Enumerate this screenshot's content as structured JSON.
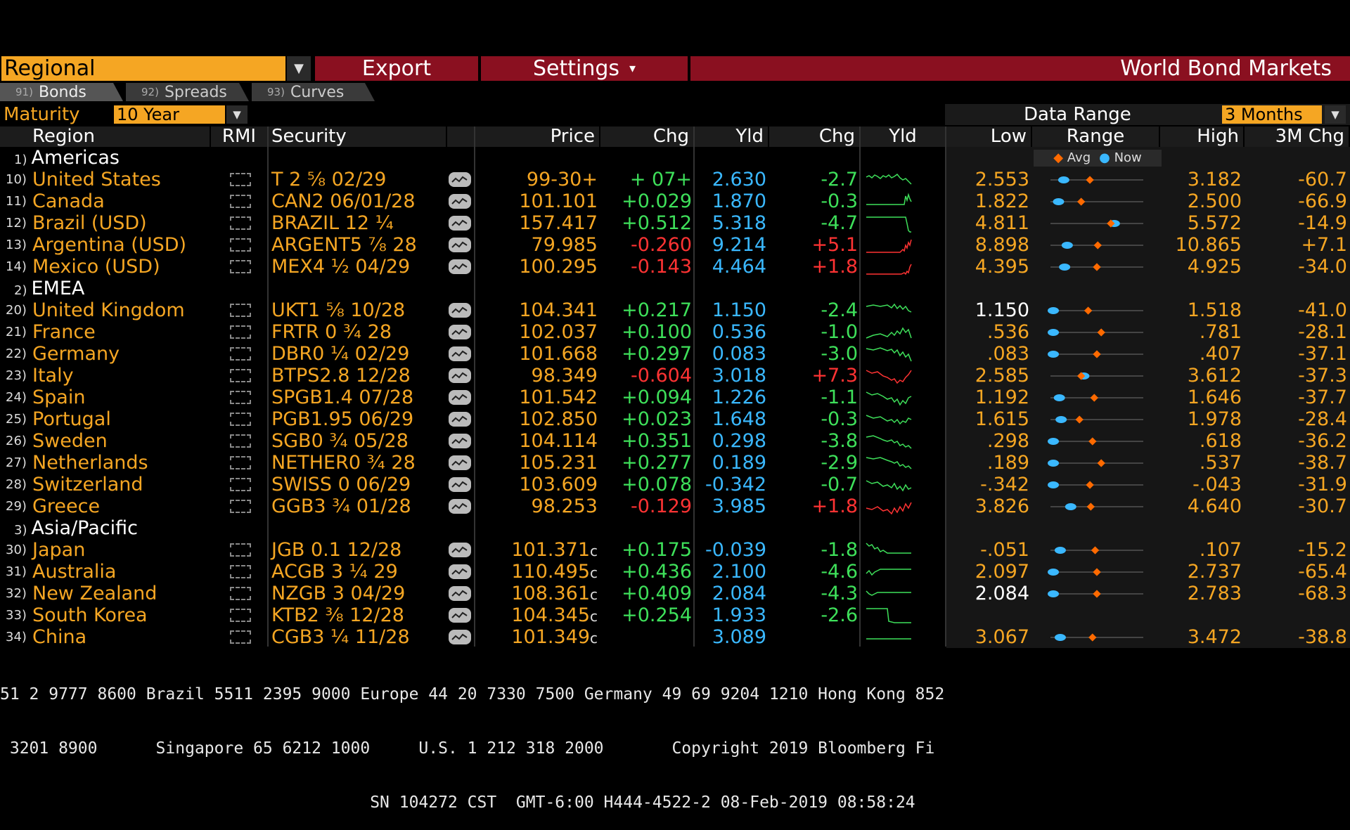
{
  "topbar": {
    "regional": "Regional",
    "export": "Export",
    "settings": "Settings",
    "settings_caret": "▾",
    "title": "World Bond Markets"
  },
  "tabs": [
    {
      "num": "91)",
      "label": "Bonds"
    },
    {
      "num": "92)",
      "label": "Spreads"
    },
    {
      "num": "93)",
      "label": "Curves"
    }
  ],
  "maturity": {
    "label": "Maturity",
    "value": "10 Year"
  },
  "data_range": {
    "label": "Data Range",
    "value": "3 Months"
  },
  "columns": {
    "region": "Region",
    "rmi": "RMI",
    "security": "Security",
    "price": "Price",
    "chg": "Chg",
    "yld": "Yld",
    "ychg": "Chg",
    "yld_chart": "Yld",
    "low": "Low",
    "range": "Range",
    "high": "High",
    "chg3m": "3M Chg"
  },
  "legend": {
    "avg": "Avg",
    "now": "Now",
    "avg_color": "#ff6a00",
    "now_color": "#3ab8ff"
  },
  "groups": [
    {
      "num": "1)",
      "name": "Americas",
      "rows": [
        {
          "num": "10)",
          "region": "United States",
          "security": "T 2 ⅝ 02/29",
          "price": "99-30+",
          "chg": "+ 07+",
          "yld": "2.630",
          "ychg": "-2.7",
          "low": "2.553",
          "high": "3.182",
          "chg3m": "-60.7",
          "avg": 0.42,
          "now": 0.12,
          "price_up": true,
          "yld_up": false,
          "spark": "0,8 4,6 8,9 12,5 16,7 20,10 24,6 28,8 32,5 36,9 40,7 44,4 48,9 52,12 56,10 60,14 64,18"
        },
        {
          "num": "11)",
          "region": "Canada",
          "security": "CAN2 06/01/28",
          "price": "101.101",
          "chg": "+0.029",
          "yld": "1.870",
          "ychg": "-0.3",
          "low": "1.822",
          "high": "2.500",
          "chg3m": "-66.9",
          "avg": 0.32,
          "now": 0.06,
          "price_up": true,
          "yld_up": false,
          "spark": "0,16 20,16 40,16 54,16 56,4 58,10 60,2 62,8 64,12"
        },
        {
          "num": "12)",
          "region": "Brazil (USD)",
          "security": "BRAZIL 12 ¼",
          "price": "157.417",
          "chg": "+0.512",
          "yld": "5.318",
          "ychg": "-4.7",
          "low": "4.811",
          "high": "5.572",
          "chg3m": "-14.9",
          "avg": 0.66,
          "now": 0.7,
          "price_up": true,
          "yld_up": false,
          "spark": "0,3 20,3 40,3 56,3 58,12 60,22 62,24 64,24"
        },
        {
          "num": "13)",
          "region": "Argentina (USD)",
          "security": "ARGENT5 ⅞ 28",
          "price": "79.985",
          "chg": "-0.260",
          "yld": "9.214",
          "ychg": "+5.1",
          "low": "8.898",
          "high": "10.865",
          "chg3m": "+7.1",
          "avg": 0.51,
          "now": 0.16,
          "price_up": false,
          "yld_up": true,
          "spark": "0,22 20,22 40,22 48,22 52,18 54,20 56,12 58,16 60,8 62,12 64,4"
        },
        {
          "num": "14)",
          "region": "Mexico (USD)",
          "security": "MEX4 ½ 04/29",
          "price": "100.295",
          "chg": "-0.143",
          "yld": "4.464",
          "ychg": "+1.8",
          "low": "4.395",
          "high": "4.925",
          "chg3m": "-34.0",
          "avg": 0.5,
          "now": 0.13,
          "price_up": false,
          "yld_up": true,
          "spark": "0,22 20,22 40,22 50,22 54,20 56,22 58,18 60,20 62,12 64,8"
        }
      ]
    },
    {
      "num": "2)",
      "name": "EMEA",
      "rows": [
        {
          "num": "20)",
          "region": "United Kingdom",
          "security": "UKT1 ⅝ 10/28",
          "price": "104.341",
          "chg": "+0.217",
          "yld": "1.150",
          "ychg": "-2.4",
          "low": "1.150",
          "high": "1.518",
          "chg3m": "-41.0",
          "avg": 0.4,
          "now": 0.0,
          "price_up": true,
          "yld_up": false,
          "spark": "0,6 10,4 20,6 30,4 36,8 40,3 44,9 48,5 52,10 56,6 60,12 64,14"
        },
        {
          "num": "21)",
          "region": "France",
          "security": "FRTR 0 ¾ 28",
          "price": "102.037",
          "chg": "+0.100",
          "yld": "0.536",
          "ychg": "-1.0",
          "low": ".536",
          "high": ".781",
          "chg3m": "-28.1",
          "avg": 0.55,
          "now": 0.0,
          "price_up": true,
          "yld_up": false,
          "spark": "0,20 10,16 20,14 30,18 36,12 40,16 44,10 48,14 52,6 56,12 60,8 64,20"
        },
        {
          "num": "22)",
          "region": "Germany",
          "security": "DBR0 ¼ 02/29",
          "price": "101.668",
          "chg": "+0.297",
          "yld": "0.083",
          "ychg": "-3.0",
          "low": ".083",
          "high": ".407",
          "chg3m": "-37.1",
          "avg": 0.5,
          "now": 0.0,
          "price_up": true,
          "yld_up": false,
          "spark": "0,4 10,6 20,3 30,7 36,5 40,10 44,6 48,14 52,9 56,16 60,12 64,22"
        },
        {
          "num": "23)",
          "region": "Italy",
          "security": "BTPS2.8 12/28",
          "price": "98.349",
          "chg": "-0.604",
          "yld": "3.018",
          "ychg": "+7.3",
          "low": "2.585",
          "high": "3.612",
          "chg3m": "-37.3",
          "avg": 0.32,
          "now": 0.35,
          "price_up": false,
          "yld_up": true,
          "spark": "0,4 8,8 16,6 24,12 30,14 36,18 40,16 44,22 48,18 52,20 56,14 60,10 64,4"
        },
        {
          "num": "24)",
          "region": "Spain",
          "security": "SPGB1.4 07/28",
          "price": "101.542",
          "chg": "+0.094",
          "yld": "1.226",
          "ychg": "-1.1",
          "low": "1.192",
          "high": "1.646",
          "chg3m": "-37.7",
          "avg": 0.47,
          "now": 0.07,
          "price_up": true,
          "yld_up": false,
          "spark": "0,4 8,8 16,6 24,10 30,14 36,12 40,18 44,14 48,22 52,16 56,20 60,12 64,10"
        },
        {
          "num": "25)",
          "region": "Portugal",
          "security": "PGB1.95 06/29",
          "price": "102.850",
          "chg": "+0.023",
          "yld": "1.648",
          "ychg": "-0.3",
          "low": "1.615",
          "high": "1.978",
          "chg3m": "-28.4",
          "avg": 0.3,
          "now": 0.09,
          "price_up": true,
          "yld_up": false,
          "spark": "0,6 10,10 20,8 30,14 36,12 40,16 44,12 48,18 52,14 56,16 60,10 64,12"
        },
        {
          "num": "26)",
          "region": "Sweden",
          "security": "SGB0 ¾ 05/28",
          "price": "104.114",
          "chg": "+0.351",
          "yld": "0.298",
          "ychg": "-3.8",
          "low": ".298",
          "high": ".618",
          "chg3m": "-36.2",
          "avg": 0.45,
          "now": 0.0,
          "price_up": true,
          "yld_up": false,
          "spark": "0,6 10,4 20,8 24,10 30,12 36,10 40,14 44,12 48,18 52,16 56,20 60,18 64,22"
        },
        {
          "num": "27)",
          "region": "Netherlands",
          "security": "NETHER0 ¾ 28",
          "price": "105.231",
          "chg": "+0.277",
          "yld": "0.189",
          "ychg": "-2.9",
          "low": ".189",
          "high": ".537",
          "chg3m": "-38.7",
          "avg": 0.55,
          "now": 0.0,
          "price_up": true,
          "yld_up": false,
          "spark": "0,4 10,6 20,4 30,8 36,10 40,12 44,10 48,16 52,14 56,18 60,16 64,20"
        },
        {
          "num": "28)",
          "region": "Switzerland",
          "security": "SWISS 0 06/29",
          "price": "103.609",
          "chg": "+0.078",
          "yld": "-0.342",
          "ychg": "-0.7",
          "low": "-.342",
          "high": "-.043",
          "chg3m": "-31.9",
          "avg": 0.42,
          "now": 0.0,
          "price_up": true,
          "yld_up": false,
          "spark": "0,6 8,10 16,8 24,14 30,12 36,16 40,10 44,18 48,14 52,20 56,12 60,18 64,16"
        },
        {
          "num": "29)",
          "region": "Greece",
          "security": "GGB3 ¾ 01/28",
          "price": "98.253",
          "chg": "-0.129",
          "yld": "3.985",
          "ychg": "+1.8",
          "low": "3.826",
          "high": "4.640",
          "chg3m": "-30.7",
          "avg": 0.43,
          "now": 0.2,
          "price_up": false,
          "yld_up": true,
          "spark": "0,14 8,16 16,12 24,18 30,16 36,22 40,14 44,20 48,12 52,18 56,8 60,14 64,6"
        }
      ]
    },
    {
      "num": "3)",
      "name": "Asia/Pacific",
      "rows": [
        {
          "num": "30)",
          "region": "Japan",
          "security": "JGB 0.1 12/28",
          "price": "101.371",
          "pricesuffix": "c",
          "chg": "+0.175",
          "yld": "-0.039",
          "ychg": "-1.8",
          "low": "-.051",
          "high": ".107",
          "chg3m": "-15.2",
          "avg": 0.48,
          "now": 0.08,
          "price_up": true,
          "yld_up": false,
          "spark": "0,2 4,6 8,4 12,10 16,8 20,14 24,12 30,16 40,16 50,16 64,16"
        },
        {
          "num": "31)",
          "region": "Australia",
          "security": "ACGB 3 ¼ 29",
          "price": "110.495",
          "pricesuffix": "c",
          "chg": "+0.436",
          "yld": "2.100",
          "ychg": "-4.6",
          "low": "2.097",
          "high": "2.737",
          "chg3m": "-65.4",
          "avg": 0.5,
          "now": 0.0,
          "price_up": true,
          "yld_up": false,
          "spark": "0,14 4,10 8,16 12,12 16,10 20,8 30,8 40,8 50,8 64,8"
        },
        {
          "num": "32)",
          "region": "New Zealand",
          "security": "NZGB 3 04/29",
          "price": "108.361",
          "pricesuffix": "c",
          "chg": "+0.409",
          "yld": "2.084",
          "ychg": "-4.3",
          "low": "2.084",
          "high": "2.783",
          "chg3m": "-68.3",
          "avg": 0.5,
          "now": 0.0,
          "price_up": true,
          "yld_up": false,
          "spark": "0,8 4,12 8,14 12,12 16,10 20,10 30,10 40,10 50,10 64,10"
        },
        {
          "num": "33)",
          "region": "South Korea",
          "security": "KTB2 ⅜ 12/28",
          "price": "104.345",
          "pricesuffix": "c",
          "chg": "+0.254",
          "yld": "1.933",
          "ychg": "-2.6",
          "low": "",
          "high": "",
          "chg3m": "",
          "avg": null,
          "now": null,
          "price_up": true,
          "yld_up": false,
          "spark": "0,2 20,2 30,2 32,20 40,22 50,22 64,22"
        },
        {
          "num": "34)",
          "region": "China",
          "security": "CGB3 ¼ 11/28",
          "price": "101.349",
          "pricesuffix": "c",
          "chg": "",
          "yld": "3.089",
          "ychg": "",
          "low": "3.067",
          "high": "3.472",
          "chg3m": "-38.8",
          "avg": 0.45,
          "now": 0.08,
          "price_up": true,
          "yld_up": false,
          "spark": "0,14 20,14 40,14 64,14"
        }
      ]
    }
  ],
  "ticker": [
    "51 2 9777 8600 Brazil 5511 2395 9000 Europe 44 20 7330 7500 Germany 49 69 9204 1210 Hong Kong 852",
    " 3201 8900      Singapore 65 6212 1000     U.S. 1 212 318 2000       Copyright 2019 Bloomberg Fi",
    "                                      SN 104272 CST  GMT-6:00 H444-4522-2 08-Feb-2019 08:58:24"
  ],
  "colors": {
    "orange": "#f5a623",
    "red_bar": "#8a1020",
    "green": "#3ee05a",
    "red": "#ff3333",
    "blue": "#3ab8ff"
  }
}
